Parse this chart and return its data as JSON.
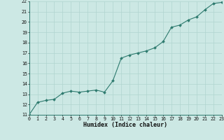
{
  "x_values": [
    0,
    1,
    2,
    3,
    4,
    5,
    6,
    7,
    8,
    9,
    10,
    11,
    12,
    13,
    14,
    15,
    16,
    17,
    18,
    19,
    20,
    21,
    22,
    23
  ],
  "y_values": [
    11.0,
    12.2,
    12.4,
    12.5,
    13.1,
    13.3,
    13.2,
    13.3,
    13.4,
    13.2,
    14.3,
    16.5,
    16.8,
    17.0,
    17.2,
    17.5,
    18.1,
    19.5,
    19.7,
    20.2,
    20.5,
    21.2,
    21.8,
    21.9
  ],
  "ylim": [
    11,
    22
  ],
  "xlim": [
    0,
    23
  ],
  "yticks": [
    11,
    12,
    13,
    14,
    15,
    16,
    17,
    18,
    19,
    20,
    21,
    22
  ],
  "xticks": [
    0,
    1,
    2,
    3,
    4,
    5,
    6,
    7,
    8,
    9,
    10,
    11,
    12,
    13,
    14,
    15,
    16,
    17,
    18,
    19,
    20,
    21,
    22,
    23
  ],
  "xlabel": "Humidex (Indice chaleur)",
  "line_color": "#2d7a6e",
  "marker_color": "#2d7a6e",
  "bg_color": "#cce8e4",
  "grid_color": "#b0d4cf",
  "tick_label_color": "#111111",
  "xlabel_color": "#111111",
  "font_family": "monospace",
  "figsize": [
    3.2,
    2.0
  ],
  "dpi": 100
}
